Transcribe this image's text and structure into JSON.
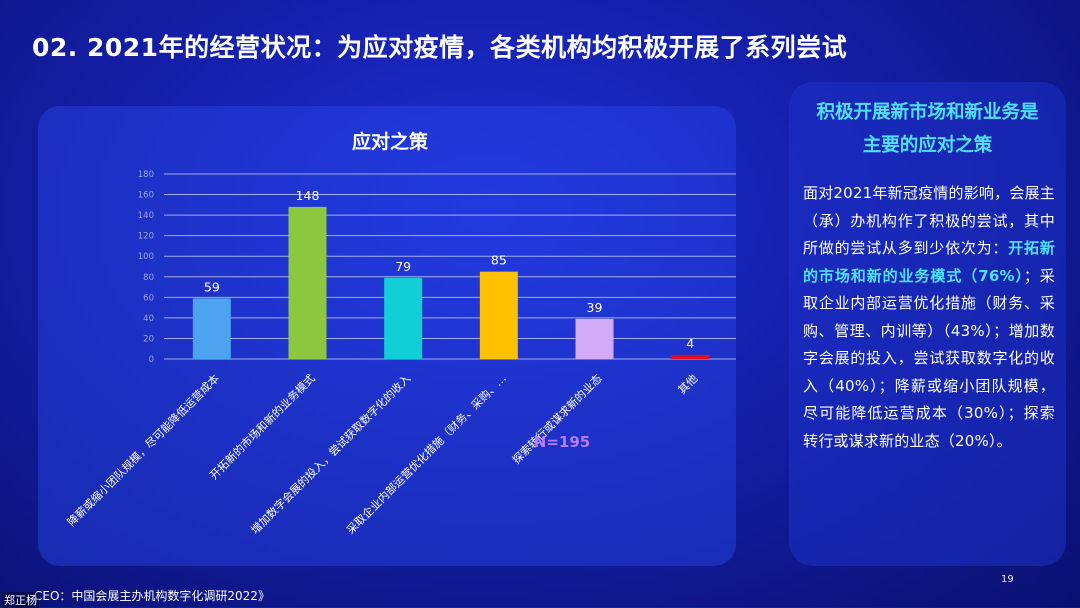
{
  "slide": {
    "title": "02. 2021年的经营状况：为应对疫情，各类机构均积极开展了系列尝试",
    "page_number": "19",
    "source": "CEO：中国会展主办机构数字化调研2022》",
    "watermark": "郑正杨"
  },
  "colors": {
    "accent_text": "#4fe0ff",
    "sample_label": "#b87cff"
  },
  "chart_data": {
    "type": "bar",
    "title": "应对之策",
    "xlabel": "",
    "ylabel": "",
    "ylim": [
      0,
      180
    ],
    "yticks": [
      0,
      20,
      40,
      60,
      80,
      100,
      120,
      140,
      160,
      180
    ],
    "grid": true,
    "categories": [
      "降薪或缩小团队规模，尽可能降低运营成本",
      "开拓新的市场和新的业务模式",
      "增加数字会展的投入，尝试获取数字化的收入",
      "采取企业内部运营优化措施（财务、采购、…",
      "探索转行或谋求新的业态",
      "其他"
    ],
    "values": [
      59,
      148,
      79,
      85,
      39,
      4
    ],
    "bar_colors": [
      "#4ea3f0",
      "#8dc63f",
      "#12cfd6",
      "#ffc000",
      "#d0aaf5",
      "#e01020"
    ],
    "annotation": "N=195"
  },
  "side": {
    "title_line1": "积极开展新市场和新业务是",
    "title_line2": "主要的应对之策",
    "body_part1": "面对2021年新冠疫情的影响，会展主（承）办机构作了积极的尝试，其中所做的尝试从多到少依次为：",
    "body_highlight": "开拓新的市场和新的业务模式（76%）",
    "body_part2": "；采取企业内部运营优化措施（财务、采购、管理、内训等）（43%）；增加数字会展的投入，尝试获取数字化的收入（40%）；降薪或缩小团队规模，尽可能降低运营成本（30%）；探索转行或谋求新的业态（20%）。"
  }
}
